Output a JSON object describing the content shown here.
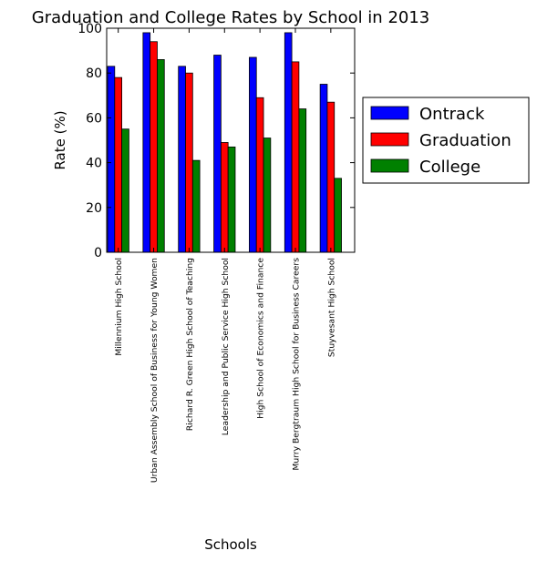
{
  "chart_data": {
    "type": "bar",
    "title": "Graduation and College Rates by School in 2013",
    "xlabel": "Schools",
    "ylabel": "Rate (%)",
    "ylim": [
      0,
      100
    ],
    "yticks": [
      0,
      20,
      40,
      60,
      80,
      100
    ],
    "grid": false,
    "legend_position": "right, outside plot area",
    "categories": [
      "Millennium High School",
      "Urban Assembly School of Business for Young Women",
      "Richard R. Green High School of Teaching",
      "Leadership and Public Service High School",
      "High School of Economics and Finance",
      "Murry Bergtraum High School for Business Careers",
      "Stuyvesant High School"
    ],
    "series": [
      {
        "name": "Ontrack",
        "color": "#0000ff",
        "values": [
          83,
          98,
          83,
          88,
          87,
          98,
          75
        ]
      },
      {
        "name": "Graduation",
        "color": "#ff0000",
        "values": [
          78,
          94,
          80,
          49,
          69,
          85,
          67
        ]
      },
      {
        "name": "College",
        "color": "#008000",
        "values": [
          55,
          86,
          41,
          47,
          51,
          64,
          33
        ]
      }
    ]
  }
}
